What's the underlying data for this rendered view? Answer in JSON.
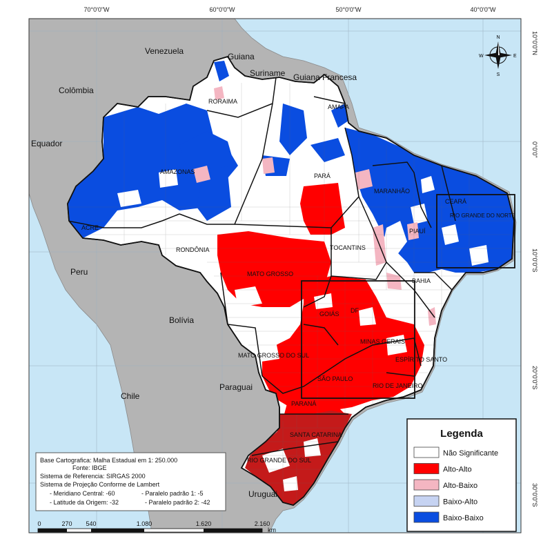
{
  "graticule": {
    "top": [
      "70°0'0\"W",
      "60°0'0\"W",
      "50°0'0\"W",
      "40°0'0\"W"
    ],
    "right": [
      "10°0'0\"N",
      "0°0'0\"",
      "10°0'0\"S",
      "20°0'0\"S",
      "30°0'0\"S"
    ]
  },
  "countries": [
    "Venezuela",
    "Guiana",
    "Suriname",
    "Guiana Francesa",
    "Colômbia",
    "Equador",
    "Peru",
    "Bolívia",
    "Paraguai",
    "Chile",
    "Uruguai"
  ],
  "states": [
    "RORAIMA",
    "AMAPA",
    "AMAZONAS",
    "PARÁ",
    "MARANHÃO",
    "CEARÁ",
    "RIO GRANDE DO NORTE",
    "PIAUÍ",
    "ACRE",
    "RONDÔNIA",
    "TOCANTINS",
    "MATO GROSSO",
    "BAHIA",
    "GOIÁS",
    "DF",
    "MINAS GERAIS",
    "MATO GROSSO DO SUL",
    "ESPÍRITO SANTO",
    "SÃO PAULO",
    "RIO DE JANEIRO",
    "PARANÁ",
    "SANTA CATARINA",
    "RIO GRANDE DO SUL"
  ],
  "compass": {
    "n": "N",
    "s": "S",
    "e": "E",
    "w": "W"
  },
  "legend": {
    "title": "Legenda",
    "items": [
      {
        "label": "Não Significante",
        "color": "#ffffff"
      },
      {
        "label": "Alto-Alto",
        "color": "#ff0000"
      },
      {
        "label": "Alto-Baixo",
        "color": "#f4b6c2"
      },
      {
        "label": "Baixo-Alto",
        "color": "#c6d3f2"
      },
      {
        "label": "Baixo-Baixo",
        "color": "#0a4de0"
      }
    ]
  },
  "info": {
    "lines": [
      "Base Cartografica: Malha Estadual em 1: 250.000",
      "Fonte: IBGE",
      "Sistema de Referencia: SIRGAS 2000",
      "Sistema de Projeção Conforme de Lambert",
      "- Meridiano Central: -60",
      "- Paralelo padrão 1: -5",
      "- Latitude da Origem: -32",
      "- Paralelo padrão 2: -42"
    ]
  },
  "scalebar": {
    "ticks": [
      "0",
      "270",
      "540",
      "1.080",
      "1.620",
      "2.160"
    ],
    "unit": "km"
  },
  "colors": {
    "ocean": "#c8e6f6",
    "land": "#b4b4b4",
    "high_high": "#ff0000",
    "high_low": "#f4b6c2",
    "low_high": "#c6d3f2",
    "low_low": "#0a4de0",
    "south_dark": "#c41a1a"
  }
}
